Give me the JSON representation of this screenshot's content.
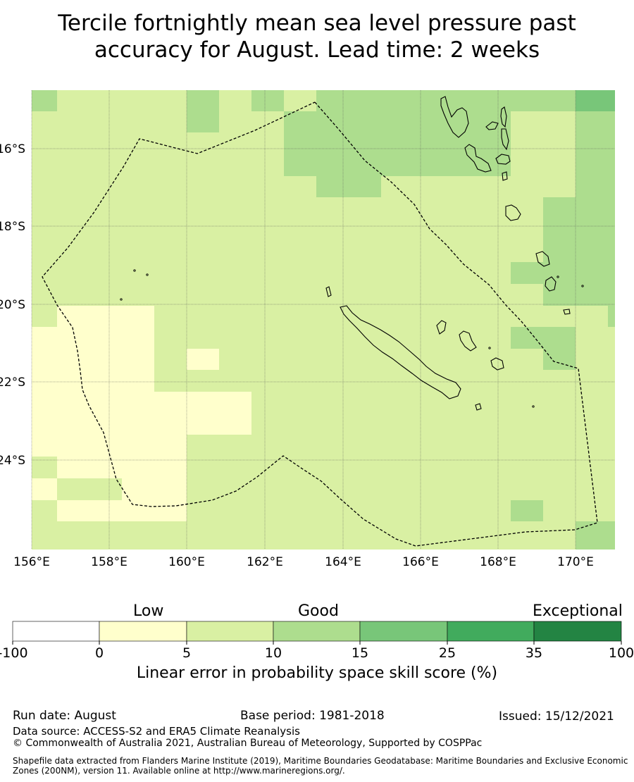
{
  "title_line1": "Tercile fortnightly mean sea level pressure past",
  "title_line2": "accuracy for August. Lead time: 2 weeks",
  "map": {
    "x_ticks": [
      "156°E",
      "158°E",
      "160°E",
      "162°E",
      "164°E",
      "166°E",
      "168°E",
      "170°E"
    ],
    "y_ticks": [
      "16°S",
      "18°S",
      "20°S",
      "22°S",
      "24°S"
    ],
    "y_tick_clipped": "20°S"
  },
  "colorbar": {
    "categories": [
      "Low",
      "Good",
      "Exceptional"
    ],
    "tick_labels": [
      "-100",
      "0",
      "5",
      "10",
      "15",
      "25",
      "35",
      "100"
    ],
    "colors": [
      "#ffffff",
      "#ffffcc",
      "#d9f0a3",
      "#addd8e",
      "#78c679",
      "#41ab5d",
      "#238443"
    ],
    "label": "Linear error in probability space skill score (%)"
  },
  "footer": {
    "run_date": "Run date: August",
    "base_period": "Base period: 1981-2018",
    "issued": "Issued: 15/12/2021",
    "data_source": "Data source: ACCESS-S2 and ERA5 Climate Reanalysis",
    "copyright": "© Commonwealth of Australia 2021, Australian Bureau of Meteorology, Supported by COSPPac",
    "shapefile_line1": "Shapefile data extracted from Flanders Marine Institute (2019), Maritime Boundaries Geodatabase: Maritime Boundaries and Exclusive Economic",
    "shapefile_line2": "Zones (200NM), version 11. Available online at http://www.marineregions.org/."
  }
}
